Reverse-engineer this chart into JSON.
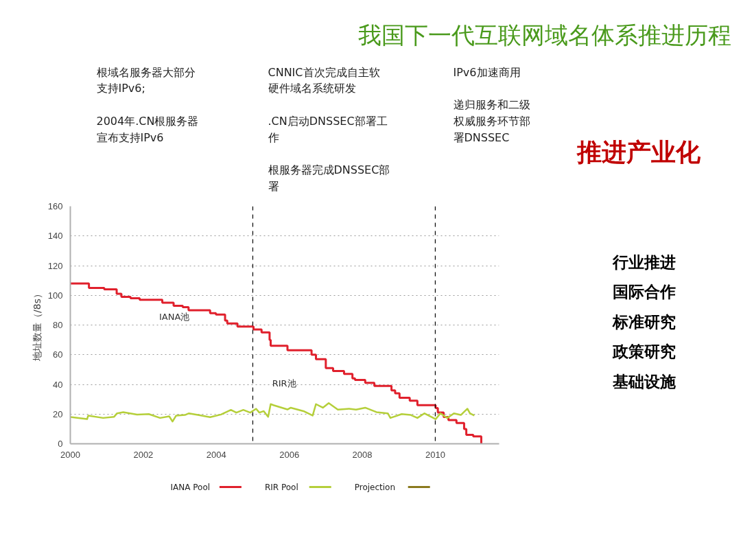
{
  "chart_data": {
    "type": "line",
    "title": "我国下一代互联网域名体系推进历程",
    "ylabel": "地址数量（/8s）",
    "xlim": [
      2000,
      2011.75
    ],
    "xticks": [
      2000,
      2002,
      2004,
      2006,
      2008,
      2010
    ],
    "ylim": [
      0,
      160
    ],
    "yticks": [
      0,
      20,
      40,
      60,
      80,
      100,
      120,
      140,
      160
    ],
    "grid": "y",
    "legend": "bottom",
    "series": [
      {
        "name": "IANA Pool",
        "type": "step",
        "color": "#e0202c",
        "x": [
          2000,
          2000.51,
          2000.93,
          2001.27,
          2001.4,
          2001.65,
          2001.9,
          2002.52,
          2002.83,
          2003.08,
          2003.24,
          2003.83,
          2003.99,
          2004.24,
          2004.3,
          2004.58,
          2005.02,
          2005.24,
          2005.46,
          2005.49,
          2005.95,
          2006.61,
          2006.73,
          2007.0,
          2007.2,
          2007.5,
          2007.73,
          2007.8,
          2008.08,
          2008.33,
          2008.8,
          2008.9,
          2009.02,
          2009.3,
          2009.51,
          2010.01,
          2010.07,
          2010.23,
          2010.36,
          2010.58,
          2010.79,
          2010.85,
          2011.04,
          2011.26
        ],
        "values": [
          108,
          105,
          104,
          101,
          99,
          98,
          97,
          95,
          93,
          92,
          90,
          88,
          87,
          83,
          81,
          79,
          77,
          75,
          70,
          66,
          63,
          60,
          57,
          51,
          49,
          47,
          44,
          43,
          41,
          39,
          36,
          34,
          31,
          29,
          26,
          24,
          21,
          18,
          16,
          14,
          10,
          6,
          5,
          0
        ]
      },
      {
        "name": "RIR Pool",
        "color": "#b5cf3a",
        "x": [
          2000,
          2000.46,
          2000.49,
          2000.9,
          2001.2,
          2001.28,
          2001.45,
          2001.83,
          2002.15,
          2002.46,
          2002.71,
          2002.8,
          2002.9,
          2003.14,
          2003.25,
          2003.5,
          2003.83,
          2004.13,
          2004.4,
          2004.55,
          2004.74,
          2004.93,
          2005.09,
          2005.18,
          2005.3,
          2005.42,
          2005.49,
          2005.58,
          2005.95,
          2006.04,
          2006.39,
          2006.64,
          2006.73,
          2006.92,
          2007.08,
          2007.33,
          2007.64,
          2007.83,
          2008.08,
          2008.39,
          2008.7,
          2008.77,
          2009.08,
          2009.33,
          2009.51,
          2009.7,
          2010.01,
          2010.14,
          2010.33,
          2010.51,
          2010.7,
          2010.88,
          2010.95,
          2011.07
        ],
        "values": [
          18,
          16.6,
          19,
          17.4,
          18.2,
          20.5,
          21.3,
          19.7,
          20,
          17.4,
          18.5,
          15,
          19,
          19.4,
          20.5,
          19.4,
          17.9,
          19.7,
          22.8,
          21,
          22.8,
          21,
          23.6,
          21,
          22,
          18.2,
          26.7,
          25.9,
          23.1,
          24.3,
          22,
          19,
          26.7,
          24.3,
          27.4,
          23,
          23.6,
          23,
          24.3,
          21.3,
          20.5,
          17.4,
          20,
          19.4,
          17.4,
          20.5,
          16.6,
          20.5,
          17.4,
          20.5,
          19.4,
          23.6,
          20.5,
          19
        ]
      },
      {
        "name": "Projection",
        "color": "#8b7a1e"
      }
    ],
    "ref_lines": [
      {
        "axis": "x",
        "value": 2005,
        "color": "#000000",
        "line_style": "dashed"
      },
      {
        "axis": "x",
        "value": 2010,
        "color": "#000000",
        "line_style": "dashed"
      }
    ],
    "annotations": [
      "IANA池",
      "RIR池",
      "根域名服务器大部分支持IPv6;",
      "2004年.CN根服务器宣布支持IPv6",
      "CNNIC首次完成自主软硬件域名系统研发",
      ".CN启动DNSSEC部署工作",
      "根服务器完成DNSSEC部署",
      "IPv6加速商用",
      "递归服务和二级权威服务环节部署DNSSEC",
      "推进产业化",
      "行业推进",
      "国际合作",
      "标准研究",
      "政策研究",
      "基础设施"
    ]
  }
}
